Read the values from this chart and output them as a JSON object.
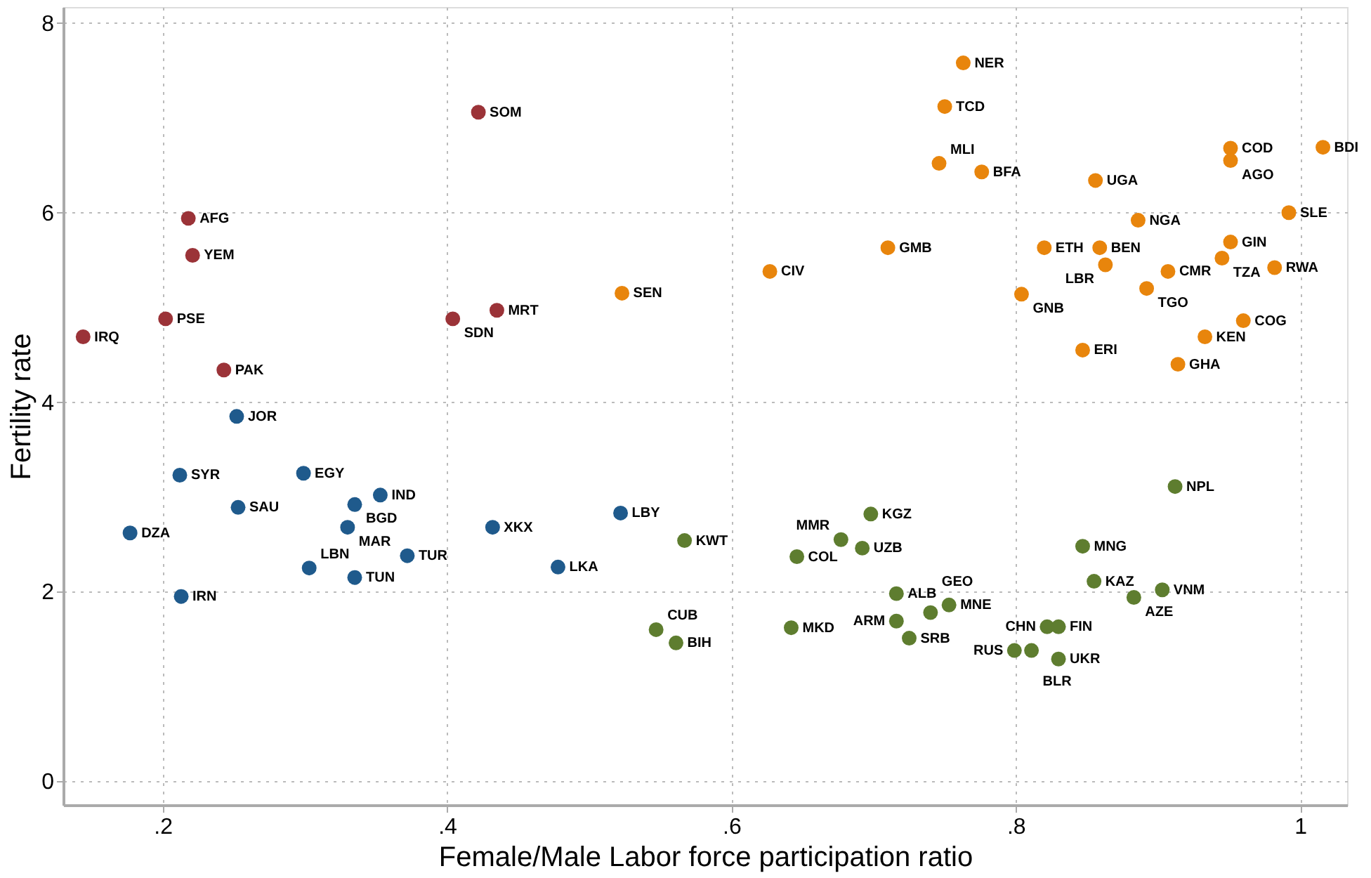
{
  "chart_data": {
    "type": "scatter",
    "xlabel": "Female/Male Labor force participation ratio",
    "ylabel": "Fertility rate",
    "xlim": [
      0.13,
      1.033
    ],
    "ylim": [
      -0.25,
      8.17
    ],
    "xticks": [
      {
        "value": 0.2,
        "label": ".2"
      },
      {
        "value": 0.4,
        "label": ".4"
      },
      {
        "value": 0.6,
        "label": ".6"
      },
      {
        "value": 0.8,
        "label": ".8"
      },
      1
    ],
    "yticks": [
      0,
      2,
      4,
      6,
      8
    ],
    "grid": true,
    "marker": "circle",
    "legend": false,
    "series": [
      {
        "color": "#9b3338",
        "x": [
          0.422,
          0.218,
          0.221,
          0.202,
          0.144,
          0.243,
          0.404,
          0.435
        ],
        "values": [
          7.06,
          5.94,
          5.55,
          4.88,
          4.69,
          4.34,
          4.88,
          4.97
        ],
        "value_labels": [
          "SOM",
          "AFG",
          "YEM",
          "PSE",
          "IRQ",
          "PAK",
          "SDN",
          "MRT"
        ]
      },
      {
        "color": "#1f5a8c",
        "x": [
          0.252,
          0.212,
          0.299,
          0.353,
          0.335,
          0.253,
          0.33,
          0.177,
          0.432,
          0.372,
          0.303,
          0.335,
          0.213,
          0.522,
          0.478
        ],
        "values": [
          3.85,
          3.23,
          3.25,
          3.02,
          2.92,
          2.89,
          2.68,
          2.62,
          2.68,
          2.38,
          2.25,
          2.15,
          1.95,
          2.83,
          2.26
        ],
        "value_labels": [
          "JOR",
          "SYR",
          "EGY",
          "IND",
          "BGD",
          "SAU",
          "MAR",
          "DZA",
          "XKX",
          "TUR",
          "LBN",
          "TUN",
          "IRN",
          "LBY",
          "LKA"
        ]
      },
      {
        "color": "#5e7d2f",
        "x": [
          0.567,
          0.547,
          0.561,
          0.642,
          0.646,
          0.677,
          0.692,
          0.698,
          0.716,
          0.716,
          0.725,
          0.74,
          0.753,
          0.847,
          0.855,
          0.883,
          0.903,
          0.912,
          0.822,
          0.83,
          0.799,
          0.811,
          0.83
        ],
        "values": [
          2.54,
          1.6,
          1.46,
          1.62,
          2.37,
          2.55,
          2.46,
          2.82,
          1.98,
          1.69,
          1.51,
          1.78,
          1.86,
          2.48,
          2.11,
          1.94,
          2.02,
          3.11,
          1.63,
          1.63,
          1.38,
          1.38,
          1.29
        ],
        "value_labels": [
          "KWT",
          "CUB",
          "BIH",
          "MKD",
          "COL",
          "MMR",
          "UZB",
          "KGZ",
          "ALB",
          "ARM",
          "SRB",
          "GEO",
          "MNE",
          "MNG",
          "KAZ",
          "AZE",
          "VNM",
          "NPL",
          "CHN",
          "FIN",
          "RUS",
          "BLR",
          "UKR"
        ]
      },
      {
        "color": "#e8850c",
        "x": [
          0.763,
          0.75,
          0.746,
          0.776,
          0.856,
          0.951,
          0.951,
          1.016,
          0.992,
          0.886,
          0.71,
          0.627,
          0.523,
          0.82,
          0.859,
          0.863,
          0.907,
          0.892,
          0.951,
          0.945,
          0.982,
          0.804,
          0.96,
          0.933,
          0.847,
          0.914
        ],
        "values": [
          7.58,
          7.12,
          6.52,
          6.43,
          6.34,
          6.68,
          6.55,
          6.69,
          6.0,
          5.92,
          5.63,
          5.38,
          5.15,
          5.63,
          5.63,
          5.45,
          5.38,
          5.2,
          5.69,
          5.52,
          5.42,
          5.14,
          4.86,
          4.69,
          4.55,
          4.4
        ],
        "value_labels": [
          "NER",
          "TCD",
          "MLI",
          "BFA",
          "UGA",
          "COD",
          "AGO",
          "BDI",
          "SLE",
          "NGA",
          "GMB",
          "CIV",
          "SEN",
          "ETH",
          "BEN",
          "LBR",
          "CMR",
          "TGO",
          "GIN",
          "TZA",
          "RWA",
          "GNB",
          "COG",
          "KEN",
          "ERI",
          "GHA"
        ]
      }
    ]
  }
}
